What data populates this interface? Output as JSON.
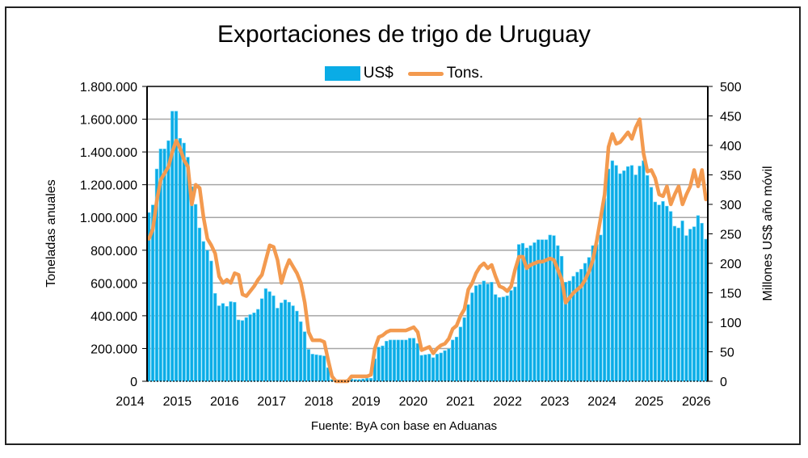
{
  "chart_data": {
    "type": "bar+line",
    "title": "Exportaciones de trigo de Uruguay",
    "source": "Fuente: ByA con base en Aduanas",
    "legend": {
      "placement": "top-center",
      "entries": [
        "US$",
        "Tons."
      ]
    },
    "colors": {
      "bars": "#0aace6",
      "line": "#f39a4f",
      "grid": "#a6a6a6"
    },
    "x": {
      "tick_labels": [
        "2014",
        "2015",
        "2016",
        "2017",
        "2018",
        "2019",
        "2020",
        "2021",
        "2022",
        "2023",
        "2024",
        "2025",
        "2026"
      ],
      "start_month": "2014-05",
      "frequency": "monthly"
    },
    "y_left": {
      "label": "Toneladas anuales",
      "range": [
        0,
        1800000
      ],
      "tick_labels": [
        "0",
        "200.000",
        "400.000",
        "600.000",
        "800.000",
        "1.000.000",
        "1.200.000",
        "1.400.000",
        "1.600.000",
        "1.800.000"
      ],
      "grid": true
    },
    "y_right": {
      "label": "Millones US$ año móvil",
      "range": [
        0,
        500
      ],
      "tick_labels": [
        "0",
        "50",
        "100",
        "150",
        "200",
        "250",
        "300",
        "350",
        "400",
        "450",
        "500"
      ]
    },
    "series": [
      {
        "name": "US$",
        "type": "bar",
        "axis": "right",
        "values": [
          286,
          299,
          360,
          394,
          394,
          408,
          458,
          458,
          412,
          404,
          380,
          330,
          300,
          260,
          237,
          222,
          204,
          149,
          128,
          132,
          127,
          135,
          134,
          104,
          103,
          108,
          113,
          116,
          122,
          140,
          157,
          152,
          145,
          124,
          133,
          138,
          134,
          128,
          119,
          101,
          84,
          54,
          46,
          45,
          44,
          43,
          23,
          3,
          2,
          2,
          2,
          3,
          4,
          3,
          3,
          4,
          5,
          5,
          38,
          58,
          60,
          68,
          70,
          70,
          70,
          70,
          70,
          73,
          73,
          64,
          44,
          45,
          46,
          40,
          46,
          48,
          52,
          55,
          70,
          75,
          92,
          108,
          130,
          150,
          162,
          164,
          170,
          165,
          168,
          147,
          142,
          143,
          145,
          154,
          160,
          232,
          234,
          226,
          230,
          235,
          240,
          240,
          240,
          248,
          247,
          230,
          212,
          168,
          170,
          178,
          185,
          190,
          200,
          210,
          230,
          232,
          248,
          310,
          360,
          374,
          366,
          352,
          357,
          364,
          366,
          350,
          365,
          374,
          349,
          329,
          304,
          299,
          305,
          297,
          288,
          263,
          260,
          272,
          247,
          258,
          262,
          281,
          268,
          241
        ]
      },
      {
        "name": "Tons.",
        "type": "line",
        "axis": "left",
        "values": [
          870000,
          930000,
          1100000,
          1230000,
          1270000,
          1310000,
          1400000,
          1470000,
          1420000,
          1350000,
          1310000,
          1080000,
          1200000,
          1180000,
          1000000,
          870000,
          830000,
          780000,
          640000,
          600000,
          620000,
          600000,
          660000,
          650000,
          530000,
          520000,
          550000,
          580000,
          620000,
          650000,
          740000,
          830000,
          820000,
          740000,
          600000,
          680000,
          740000,
          700000,
          660000,
          600000,
          480000,
          300000,
          250000,
          250000,
          250000,
          240000,
          130000,
          30000,
          0,
          0,
          0,
          0,
          30000,
          30000,
          30000,
          30000,
          30000,
          40000,
          200000,
          270000,
          280000,
          300000,
          310000,
          310000,
          310000,
          310000,
          310000,
          320000,
          330000,
          300000,
          190000,
          200000,
          210000,
          170000,
          200000,
          220000,
          230000,
          260000,
          320000,
          340000,
          400000,
          440000,
          560000,
          600000,
          660000,
          700000,
          720000,
          690000,
          710000,
          640000,
          580000,
          570000,
          550000,
          580000,
          680000,
          760000,
          760000,
          690000,
          710000,
          720000,
          730000,
          730000,
          740000,
          750000,
          740000,
          680000,
          620000,
          480000,
          510000,
          540000,
          560000,
          580000,
          620000,
          670000,
          740000,
          860000,
          1000000,
          1140000,
          1430000,
          1510000,
          1450000,
          1460000,
          1490000,
          1520000,
          1480000,
          1550000,
          1600000,
          1390000,
          1280000,
          1290000,
          1240000,
          1140000,
          1130000,
          1190000,
          1080000,
          1140000,
          1190000,
          1080000,
          1140000,
          1190000,
          1290000,
          1190000,
          1290000,
          1110000
        ]
      }
    ]
  }
}
